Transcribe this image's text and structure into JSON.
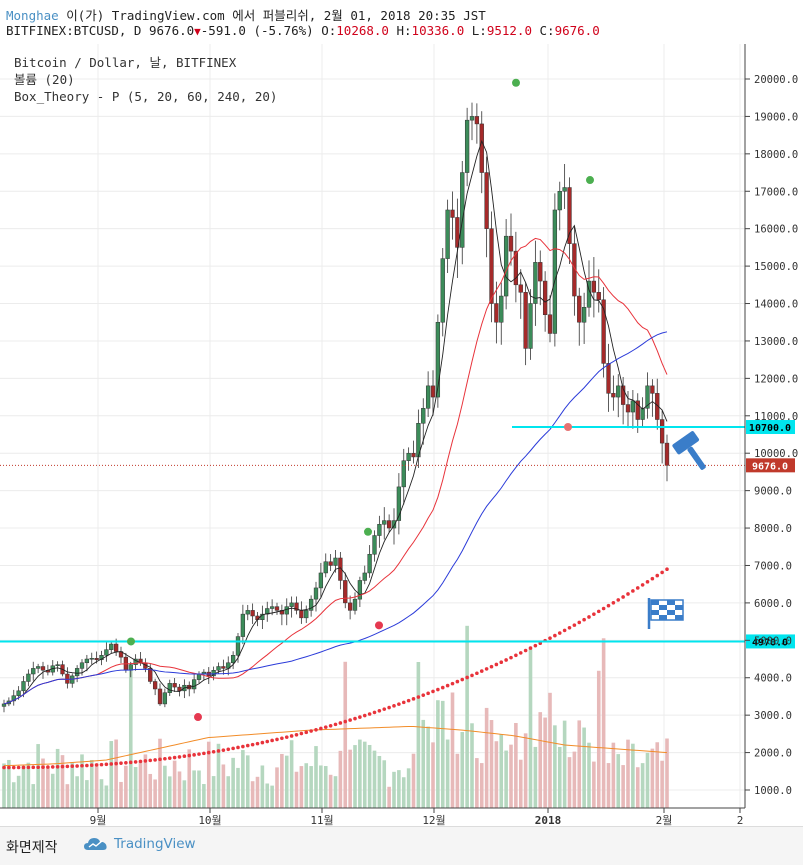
{
  "header": {
    "author": "Monghae",
    "published": "이(가) TradingView.com 에서 퍼블리쉬, 2월 01, 2018 20:35 JST",
    "symbol": "BITFINEX:BTCUSD, D",
    "last": "9676.0",
    "change_arrow": "▼",
    "change": "-591.0 (-5.76%)",
    "o_label": "O:",
    "o": "10268.0",
    "h_label": "H:",
    "h": "10336.0",
    "l_label": "L:",
    "l": "9512.0",
    "c_label": "C:",
    "c": "9676.0"
  },
  "legend": {
    "line1": "Bitcoin / Dollar, 날, BITFINEX",
    "line2": "볼륨 (20)",
    "line3": "Box_Theory - P (5, 20, 60, 240, 20)"
  },
  "footer": {
    "action": "화면제작",
    "brand": "TradingView"
  },
  "chart_data": {
    "type": "candlestick",
    "x_tick_labels": [
      "9월",
      "10월",
      "11월",
      "12월",
      "2018",
      "2월",
      "2"
    ],
    "y_tick_labels": [
      "1000.0",
      "2000.0",
      "3000.0",
      "4000.0",
      "5000.0",
      "6000.0",
      "7000.0",
      "8000.0",
      "9000.0",
      "10000.0",
      "11000.0",
      "12000.0",
      "13000.0",
      "14000.0",
      "15000.0",
      "16000.0",
      "17000.0",
      "18000.0",
      "19000.0",
      "20000.0"
    ],
    "ylim": [
      300,
      21800
    ],
    "price_levels": [
      {
        "label": "10700.0",
        "value": 10700,
        "color": "#00e5ee"
      },
      {
        "label": "4970.0",
        "value": 4970,
        "color": "#00e5ee"
      }
    ],
    "last_price": {
      "label": "9676.0",
      "value": 9676,
      "color": "#c0392b"
    },
    "colors": {
      "up": "#3c8c5a",
      "down": "#a52a2a",
      "ma20": "#e8333b",
      "ma60": "#2b3bd9",
      "ma240": "#e8333b",
      "volume_ma": "#f28c28",
      "vol_up": "#b5d7bf",
      "vol_down": "#e7b9b9"
    },
    "closes": [
      3300,
      3380,
      3520,
      3650,
      3900,
      4100,
      4250,
      4300,
      4200,
      4150,
      4320,
      4350,
      4100,
      3850,
      4050,
      4250,
      4400,
      4500,
      4520,
      4480,
      4600,
      4750,
      4900,
      4700,
      4550,
      4200,
      4350,
      4500,
      4400,
      4250,
      3900,
      3700,
      3300,
      3600,
      3850,
      3750,
      3650,
      3800,
      3700,
      3950,
      4100,
      4150,
      4050,
      4200,
      4300,
      4250,
      4400,
      4600,
      5100,
      5700,
      5800,
      5650,
      5550,
      5700,
      5850,
      5900,
      5800,
      5700,
      5900,
      6000,
      5800,
      5600,
      5800,
      6100,
      6400,
      6800,
      7100,
      7000,
      7200,
      6600,
      6000,
      5800,
      6100,
      6600,
      6800,
      7300,
      7800,
      8100,
      8200,
      8000,
      8200,
      9100,
      9800,
      10000,
      9900,
      10800,
      11200,
      11800,
      11500,
      13500,
      15200,
      16500,
      16300,
      15500,
      17500,
      18900,
      19000,
      18800,
      17500,
      16000,
      14000,
      13500,
      14200,
      15800,
      15400,
      14500,
      14300,
      12800,
      14000,
      15100,
      14600,
      13700,
      13200,
      16500,
      17000,
      17100,
      15600,
      14200,
      13500,
      13900,
      14600,
      14300,
      14100,
      12400,
      11600,
      11500,
      11800,
      11300,
      11100,
      11400,
      10900,
      11200,
      11800,
      11600,
      10900,
      10270,
      9676
    ],
    "volume_ma_approx": [
      1650,
      1700,
      1800,
      2100,
      2400,
      2500,
      2600,
      2650,
      2700,
      2600,
      2450,
      2200,
      2100,
      2000
    ],
    "markers": [
      {
        "shape": "circle",
        "color": "#4caf50",
        "at_price": 19900
      },
      {
        "shape": "circle",
        "color": "#4caf50",
        "at_price": 17300
      },
      {
        "shape": "circle",
        "color": "#4caf50",
        "at_price": 7900
      },
      {
        "shape": "circle",
        "color": "#4caf50",
        "at_price": 4970
      },
      {
        "shape": "circle",
        "color": "#e53950",
        "at_price": 5400
      },
      {
        "shape": "circle",
        "color": "#e53950",
        "at_price": 2950
      },
      {
        "shape": "circle",
        "color": "#e57373",
        "at_price": 10700
      }
    ],
    "icons": [
      "gavel-icon",
      "checkered-flag-icon"
    ]
  }
}
